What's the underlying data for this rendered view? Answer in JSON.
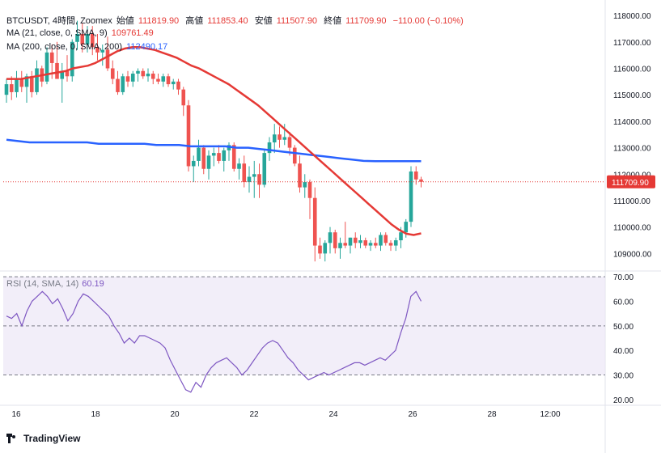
{
  "header": {
    "symbol": "BTCUSDT, 4時間, Zoomex",
    "open_label": "始値",
    "open": "111819.90",
    "high_label": "高値",
    "high": "111853.40",
    "low_label": "安値",
    "low": "111507.90",
    "close_label": "終値",
    "close": "111709.90",
    "change": "−110.00 (−0.10%)",
    "ma21_label": "MA (21, close, 0, SMA, 9)",
    "ma21_value": "109761.49",
    "ma200_label": "MA (200, close, 0, SMA, 200)",
    "ma200_value": "112490.17",
    "rsi_label": "RSI (14, SMA, 14)",
    "rsi_value": "60.19"
  },
  "brand": {
    "name": "TradingView"
  },
  "colors": {
    "up": "#26a69a",
    "down": "#ef5350",
    "ma21": "#e53935",
    "ma200": "#2962ff",
    "rsi": "#7e57c2",
    "rsi_band": "#ede7f6",
    "price_tag": "#e53935"
  },
  "chart_data": [
    {
      "type": "candlestick",
      "title": "BTCUSDT, 4時間, Zoomex",
      "x_ticks": [
        "16",
        "18",
        "20",
        "22",
        "24",
        "26",
        "28",
        "12:00"
      ],
      "y_ticks": [
        "109000.00",
        "110000.00",
        "111000.00",
        "112000.00",
        "113000.00",
        "114000.00",
        "115000.00",
        "116000.00",
        "117000.00",
        "118000.00"
      ],
      "ylim": [
        108400,
        118400
      ],
      "last_price": "111709.90",
      "candles": [
        [
          115000,
          115600,
          114700,
          115400
        ],
        [
          115400,
          115700,
          114800,
          115100
        ],
        [
          115100,
          115900,
          114900,
          115600
        ],
        [
          115600,
          115900,
          115100,
          115300
        ],
        [
          115300,
          115800,
          114700,
          115700
        ],
        [
          115700,
          115900,
          114900,
          115100
        ],
        [
          115100,
          116300,
          115000,
          116000
        ],
        [
          116000,
          116100,
          115300,
          115500
        ],
        [
          115500,
          116800,
          115400,
          116600
        ],
        [
          116600,
          116900,
          115600,
          116200
        ],
        [
          116200,
          117000,
          115700,
          115600
        ],
        [
          115600,
          116200,
          114700,
          115900
        ],
        [
          115900,
          116500,
          115500,
          115700
        ],
        [
          115700,
          117100,
          115500,
          117000
        ],
        [
          117000,
          117800,
          116700,
          117300
        ],
        [
          117300,
          117700,
          116600,
          116900
        ],
        [
          116900,
          117600,
          116600,
          117300
        ],
        [
          117300,
          117600,
          116500,
          116800
        ],
        [
          116800,
          117300,
          116300,
          116600
        ],
        [
          116600,
          116900,
          116100,
          116700
        ],
        [
          116700,
          117200,
          115900,
          116000
        ],
        [
          116000,
          116300,
          115400,
          115600
        ],
        [
          115600,
          115900,
          115000,
          115100
        ],
        [
          115100,
          115800,
          115000,
          115700
        ],
        [
          115700,
          115900,
          115300,
          115500
        ],
        [
          115500,
          115900,
          115300,
          115800
        ],
        [
          115800,
          116000,
          115500,
          115900
        ],
        [
          115900,
          116000,
          115600,
          115700
        ],
        [
          115700,
          116000,
          115500,
          115800
        ],
        [
          115800,
          115900,
          115400,
          115600
        ],
        [
          115600,
          115800,
          115400,
          115500
        ],
        [
          115500,
          115800,
          115300,
          115700
        ],
        [
          115700,
          115800,
          115300,
          115400
        ],
        [
          115400,
          115600,
          115200,
          115500
        ],
        [
          115500,
          115600,
          115000,
          115200
        ],
        [
          115200,
          115300,
          114200,
          114600
        ],
        [
          114600,
          114800,
          112100,
          112300
        ],
        [
          112300,
          112700,
          111700,
          112500
        ],
        [
          112500,
          113300,
          112300,
          113000
        ],
        [
          113000,
          113100,
          112000,
          112200
        ],
        [
          112200,
          112900,
          111800,
          112700
        ],
        [
          112700,
          113000,
          112300,
          112800
        ],
        [
          112800,
          113100,
          112400,
          112500
        ],
        [
          112500,
          113000,
          112100,
          112900
        ],
        [
          112900,
          113200,
          112500,
          113100
        ],
        [
          113100,
          113200,
          112100,
          112200
        ],
        [
          112200,
          112600,
          111800,
          112400
        ],
        [
          112400,
          112700,
          111500,
          111700
        ],
        [
          111700,
          112300,
          111300,
          111900
        ],
        [
          111900,
          112500,
          111100,
          112000
        ],
        [
          112000,
          112400,
          111100,
          111600
        ],
        [
          111600,
          112900,
          111500,
          112800
        ],
        [
          112800,
          113400,
          112500,
          113200
        ],
        [
          113200,
          113900,
          112800,
          113500
        ],
        [
          113500,
          113800,
          113000,
          113300
        ],
        [
          113300,
          113900,
          113100,
          113400
        ],
        [
          113400,
          113600,
          112700,
          113000
        ],
        [
          113000,
          113100,
          112300,
          112400
        ],
        [
          112400,
          112700,
          111300,
          111500
        ],
        [
          111500,
          112000,
          111100,
          111700
        ],
        [
          111700,
          111800,
          110300,
          111100
        ],
        [
          111100,
          111500,
          108700,
          109300
        ],
        [
          109300,
          109600,
          108800,
          109000
        ],
        [
          109000,
          109500,
          108700,
          109400
        ],
        [
          109400,
          110000,
          109000,
          109800
        ],
        [
          109800,
          109900,
          109000,
          109200
        ],
        [
          109200,
          109600,
          108800,
          109400
        ],
        [
          109400,
          110200,
          109200,
          109300
        ],
        [
          109300,
          109600,
          109000,
          109600
        ],
        [
          109600,
          109800,
          109200,
          109400
        ],
        [
          109400,
          109700,
          109200,
          109500
        ],
        [
          109500,
          109600,
          109200,
          109300
        ],
        [
          109300,
          109500,
          109100,
          109400
        ],
        [
          109400,
          109600,
          109200,
          109300
        ],
        [
          109300,
          109800,
          109100,
          109700
        ],
        [
          109700,
          109800,
          109300,
          109400
        ],
        [
          109400,
          109500,
          109100,
          109300
        ],
        [
          109300,
          109600,
          109100,
          109500
        ],
        [
          109500,
          110000,
          109200,
          109800
        ],
        [
          109800,
          110300,
          109600,
          110200
        ],
        [
          110200,
          112300,
          110000,
          112100
        ],
        [
          112100,
          112300,
          111600,
          111800
        ],
        [
          111800,
          111900,
          111500,
          111710
        ]
      ],
      "series": [
        {
          "name": "MA (21, close, 0, SMA, 9)",
          "values": [
            115600,
            115600,
            115600,
            115650,
            115700,
            115750,
            115800,
            115850,
            115900,
            116000,
            116050,
            116100,
            116200,
            116350,
            116500,
            116650,
            116750,
            116800,
            116800,
            116750,
            116700,
            116600,
            116500,
            116400,
            116250,
            116100,
            116000,
            115850,
            115700,
            115550,
            115400,
            115200,
            115000,
            114800,
            114600,
            114350,
            114100,
            113850,
            113600,
            113350,
            113100,
            112850,
            112600,
            112350,
            112100,
            111850,
            111600,
            111350,
            111100,
            110850,
            110600,
            110350,
            110100,
            109900,
            109750,
            109700,
            109761
          ]
        },
        {
          "name": "MA (200, close, 0, SMA, 200)",
          "values": [
            113300,
            113250,
            113200,
            113200,
            113200,
            113200,
            113200,
            113200,
            113150,
            113150,
            113150,
            113150,
            113150,
            113100,
            113100,
            113100,
            113050,
            113050,
            113050,
            113050,
            113000,
            113000,
            112950,
            112900,
            112850,
            112800,
            112750,
            112700,
            112650,
            112600,
            112550,
            112500,
            112490,
            112490,
            112490,
            112490,
            112490
          ]
        }
      ]
    },
    {
      "type": "line",
      "title": "RSI (14, SMA, 14)",
      "y_ticks": [
        "20.00",
        "30.00",
        "40.00",
        "50.00",
        "60.00",
        "70.00"
      ],
      "ylim": [
        18,
        72
      ],
      "band": [
        30,
        70
      ],
      "midline": 50,
      "values": [
        54,
        53,
        55,
        50,
        56,
        60,
        62,
        64,
        62,
        59,
        61,
        57,
        52,
        55,
        60,
        63,
        62,
        60,
        58,
        56,
        54,
        50,
        47,
        43,
        45,
        43,
        46,
        46,
        45,
        44,
        43,
        41,
        36,
        32,
        28,
        24,
        23,
        27,
        25,
        30,
        33,
        35,
        36,
        37,
        35,
        33,
        30,
        32,
        35,
        38,
        41,
        43,
        44,
        43,
        40,
        37,
        35,
        32,
        30,
        28,
        29,
        30,
        31,
        30,
        31,
        32,
        33,
        34,
        35,
        35,
        34,
        35,
        36,
        37,
        36,
        38,
        40,
        47,
        53,
        62,
        64,
        60
      ]
    }
  ]
}
